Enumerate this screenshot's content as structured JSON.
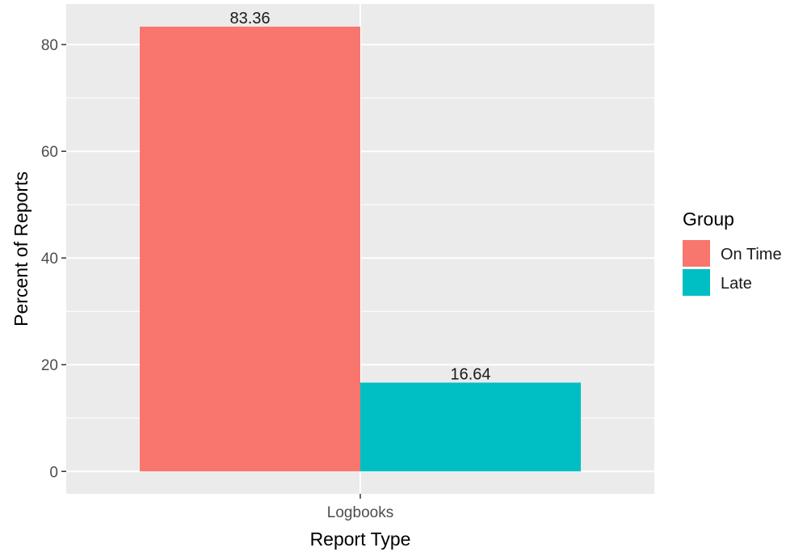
{
  "chart_data": {
    "type": "bar",
    "categories": [
      "Logbooks"
    ],
    "series": [
      {
        "name": "On Time",
        "values": [
          83.36
        ],
        "color": "#F8766D"
      },
      {
        "name": "Late",
        "values": [
          16.64
        ],
        "color": "#00BFC4"
      }
    ],
    "data_labels": [
      "83.36",
      "16.64"
    ],
    "xlabel": "Report Type",
    "ylabel": "Percent of Reports",
    "ylim": [
      -4.2,
      87.6
    ],
    "yticks": [
      0,
      20,
      40,
      60,
      80
    ],
    "ytick_labels": [
      "0",
      "20",
      "40",
      "60",
      "80"
    ],
    "grid": true,
    "legend": {
      "title": "Group",
      "position": "right"
    },
    "panel_background": "#EBEBEB",
    "grid_color": "#FFFFFF"
  }
}
